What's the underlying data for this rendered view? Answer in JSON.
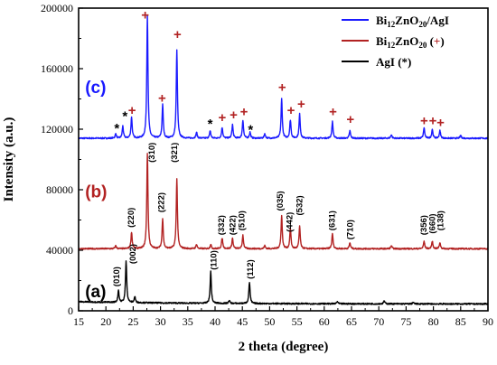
{
  "chart_data": {
    "type": "line",
    "xlabel": "2 theta (degree)",
    "ylabel": "Intensity (a.u.)",
    "xlim": [
      15,
      90
    ],
    "ylim": [
      0,
      200000
    ],
    "xticks": [
      15,
      20,
      25,
      30,
      35,
      40,
      45,
      50,
      55,
      60,
      65,
      70,
      75,
      80,
      85,
      90
    ],
    "yticks": [
      0,
      40000,
      80000,
      120000,
      160000,
      200000
    ],
    "xtick_labels": [
      "15",
      "20",
      "25",
      "30",
      "35",
      "40",
      "45",
      "50",
      "55",
      "60",
      "65",
      "70",
      "75",
      "80",
      "85",
      "90"
    ],
    "ytick_labels": [
      "0",
      "40000",
      "80000",
      "120000",
      "160000",
      "200000"
    ],
    "grid": false,
    "legend_position": "top-right",
    "series": [
      {
        "id": "c",
        "label": "(c)",
        "color": "#1a1aff",
        "baseline": 114000,
        "peaks": [
          {
            "x": 21.8,
            "h": 3000
          },
          {
            "x": 23.1,
            "h": 8000
          },
          {
            "x": 24.7,
            "h": 14000
          },
          {
            "x": 27.6,
            "h": 81000
          },
          {
            "x": 30.4,
            "h": 22000
          },
          {
            "x": 33.0,
            "h": 58000
          },
          {
            "x": 36.6,
            "h": 4000
          },
          {
            "x": 39.1,
            "h": 5000
          },
          {
            "x": 41.3,
            "h": 7000
          },
          {
            "x": 43.2,
            "h": 9000
          },
          {
            "x": 45.1,
            "h": 12000
          },
          {
            "x": 46.4,
            "h": 4000
          },
          {
            "x": 49.1,
            "h": 3000
          },
          {
            "x": 52.2,
            "h": 26000
          },
          {
            "x": 53.8,
            "h": 12000
          },
          {
            "x": 55.5,
            "h": 16000
          },
          {
            "x": 61.5,
            "h": 11000
          },
          {
            "x": 64.7,
            "h": 5000
          },
          {
            "x": 72.3,
            "h": 2500
          },
          {
            "x": 78.3,
            "h": 7000
          },
          {
            "x": 79.8,
            "h": 6000
          },
          {
            "x": 81.2,
            "h": 5000
          },
          {
            "x": 85.0,
            "h": 2000
          }
        ]
      },
      {
        "id": "b",
        "label": "(b)",
        "color": "#b22222",
        "baseline": 41000,
        "peaks": [
          {
            "x": 21.8,
            "h": 2000
          },
          {
            "x": 24.7,
            "h": 11000
          },
          {
            "x": 27.6,
            "h": 63000
          },
          {
            "x": 30.4,
            "h": 20000
          },
          {
            "x": 33.0,
            "h": 46000
          },
          {
            "x": 36.6,
            "h": 3000
          },
          {
            "x": 39.2,
            "h": 3000
          },
          {
            "x": 41.3,
            "h": 7000
          },
          {
            "x": 43.2,
            "h": 7000
          },
          {
            "x": 45.1,
            "h": 9000
          },
          {
            "x": 49.1,
            "h": 2000
          },
          {
            "x": 52.2,
            "h": 22000
          },
          {
            "x": 53.8,
            "h": 13000
          },
          {
            "x": 55.5,
            "h": 15000
          },
          {
            "x": 61.5,
            "h": 10000
          },
          {
            "x": 64.7,
            "h": 4000
          },
          {
            "x": 72.3,
            "h": 2000
          },
          {
            "x": 78.3,
            "h": 5000
          },
          {
            "x": 79.8,
            "h": 5000
          },
          {
            "x": 81.2,
            "h": 4000
          }
        ]
      },
      {
        "id": "a",
        "label": "(a)",
        "color": "#000000",
        "baseline": 4500,
        "peaks": [
          {
            "x": 22.3,
            "h": 8000
          },
          {
            "x": 23.7,
            "h": 27000
          },
          {
            "x": 25.3,
            "h": 4000
          },
          {
            "x": 39.2,
            "h": 21000
          },
          {
            "x": 42.6,
            "h": 2000
          },
          {
            "x": 46.3,
            "h": 14000
          },
          {
            "x": 62.4,
            "h": 1500
          },
          {
            "x": 71.0,
            "h": 2000
          },
          {
            "x": 76.3,
            "h": 1000
          }
        ]
      }
    ],
    "legend": [
      {
        "text": "Bi",
        "sub": "12",
        "rest": "ZnO",
        "sub2": "20",
        "tail": "/AgI",
        "color": "#1a1aff"
      },
      {
        "text": "Bi",
        "sub": "12",
        "rest": "ZnO",
        "sub2": "20",
        "tail": " (",
        "marker": "+",
        "tail2": ")",
        "color": "#b22222"
      },
      {
        "text": "AgI (*)",
        "color": "#000000"
      }
    ],
    "peak_labels_b": [
      {
        "text": "(220)",
        "x": 24.7,
        "y": 55000
      },
      {
        "text": "(310)",
        "x": 28.5,
        "y": 98000
      },
      {
        "text": "(222)",
        "x": 30.2,
        "y": 65000
      },
      {
        "text": "(321)",
        "x": 32.6,
        "y": 98000
      },
      {
        "text": "(332)",
        "x": 41.2,
        "y": 50000
      },
      {
        "text": "(422)",
        "x": 43.3,
        "y": 50000
      },
      {
        "text": "(510)",
        "x": 45.0,
        "y": 53000
      },
      {
        "text": "(035)",
        "x": 52.0,
        "y": 66000
      },
      {
        "text": "(442)",
        "x": 53.7,
        "y": 52000
      },
      {
        "text": "(532)",
        "x": 55.6,
        "y": 63000
      },
      {
        "text": "(631)",
        "x": 61.5,
        "y": 53000
      },
      {
        "text": "(710)",
        "x": 64.8,
        "y": 47000
      },
      {
        "text": "(356)",
        "x": 78.3,
        "y": 50000
      },
      {
        "text": "(660)",
        "x": 79.9,
        "y": 51000
      },
      {
        "text": "(138)",
        "x": 81.4,
        "y": 53000
      }
    ],
    "peak_labels_a": [
      {
        "text": "(010)",
        "x": 22.0,
        "y": 16000
      },
      {
        "text": "(002)",
        "x": 25.0,
        "y": 31000
      },
      {
        "text": "(110)",
        "x": 39.8,
        "y": 27000
      },
      {
        "text": "(112)",
        "x": 46.5,
        "y": 21000
      }
    ],
    "plus_markers_c": [
      {
        "x": 27.2,
        "y": 195000
      },
      {
        "x": 33.1,
        "y": 182000
      },
      {
        "x": 30.3,
        "y": 140000
      },
      {
        "x": 24.8,
        "y": 132000
      },
      {
        "x": 41.3,
        "y": 127000
      },
      {
        "x": 43.4,
        "y": 129000
      },
      {
        "x": 45.3,
        "y": 131000
      },
      {
        "x": 52.3,
        "y": 147000
      },
      {
        "x": 53.9,
        "y": 132000
      },
      {
        "x": 55.8,
        "y": 136000
      },
      {
        "x": 61.6,
        "y": 131000
      },
      {
        "x": 64.8,
        "y": 126000
      },
      {
        "x": 78.3,
        "y": 125000
      },
      {
        "x": 79.9,
        "y": 125000
      },
      {
        "x": 81.3,
        "y": 124000
      }
    ],
    "star_markers_c": [
      {
        "x": 22.0,
        "y": 120000
      },
      {
        "x": 23.5,
        "y": 128000
      },
      {
        "x": 39.1,
        "y": 123000
      },
      {
        "x": 46.5,
        "y": 119000
      }
    ],
    "panel_labels": [
      {
        "text": "(c)",
        "x": 16.2,
        "y": 144000,
        "color": "#1a1aff"
      },
      {
        "text": "(b)",
        "x": 16.2,
        "y": 75000,
        "color": "#b22222"
      },
      {
        "text": "(a)",
        "x": 16.2,
        "y": 9000,
        "color": "#000000"
      }
    ]
  }
}
